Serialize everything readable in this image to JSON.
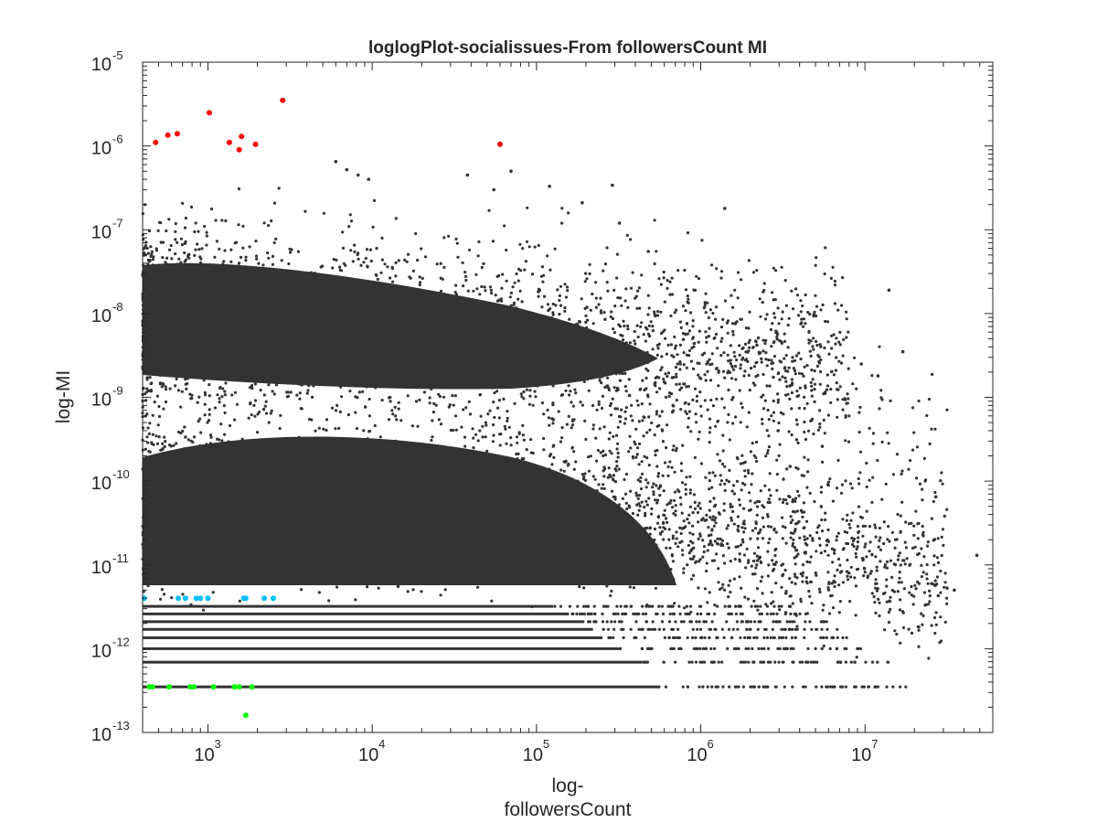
{
  "chart_data": {
    "type": "scatter",
    "title": "loglogPlot-socialissues-From followersCount MI",
    "xlabel_lines": [
      "log-",
      "followersCount"
    ],
    "ylabel": "log-MI",
    "x_scale": "log",
    "y_scale": "log",
    "xlim": [
      400,
      60000000
    ],
    "ylim": [
      1e-13,
      1e-05
    ],
    "x_ticks": [
      {
        "value": 1000,
        "base": "10",
        "exp": "3"
      },
      {
        "value": 10000,
        "base": "10",
        "exp": "4"
      },
      {
        "value": 100000,
        "base": "10",
        "exp": "5"
      },
      {
        "value": 1000000,
        "base": "10",
        "exp": "6"
      },
      {
        "value": 10000000,
        "base": "10",
        "exp": "7"
      }
    ],
    "y_ticks": [
      {
        "value": 1e-13,
        "base": "10",
        "exp": "-13"
      },
      {
        "value": 1e-12,
        "base": "10",
        "exp": "-12"
      },
      {
        "value": 1e-11,
        "base": "10",
        "exp": "-11"
      },
      {
        "value": 1e-10,
        "base": "10",
        "exp": "-10"
      },
      {
        "value": 1e-09,
        "base": "10",
        "exp": "-9"
      },
      {
        "value": 1e-08,
        "base": "10",
        "exp": "-8"
      },
      {
        "value": 1e-07,
        "base": "10",
        "exp": "-7"
      },
      {
        "value": 1e-06,
        "base": "10",
        "exp": "-6"
      },
      {
        "value": 1e-05,
        "base": "10",
        "exp": "-5"
      }
    ],
    "grid": false,
    "legend": "none",
    "bulk_description": "tens of thousands of dark gray points; dense cluster around 1e-9 to 1e-7 for x<1e5, dense cloud 1e-11 to 1e-9.5 for x<1e6, discrete horizontal bands between 3.5e-13 and 3e-12",
    "series": [
      {
        "color": "#333333",
        "points": [
          [
            6000,
            6.5e-07
          ],
          [
            7000,
            5.2e-07
          ],
          [
            8200,
            4.5e-07
          ],
          [
            9500,
            4e-07
          ],
          [
            38000,
            4.5e-07
          ],
          [
            55000,
            3e-07
          ],
          [
            70000,
            5e-07
          ],
          [
            120000,
            3.3e-07
          ],
          [
            190000,
            2.1e-07
          ],
          [
            290000,
            3.4e-07
          ],
          [
            320000,
            1.2e-07
          ],
          [
            480000,
            5.5e-08
          ],
          [
            1400000,
            1.8e-07
          ],
          [
            14000000,
            1.9e-08
          ],
          [
            9500000,
            2.5e-09
          ],
          [
            17000000,
            3.5e-09
          ],
          [
            2200000,
            4.2e-09
          ],
          [
            12000000,
            1.8e-09
          ],
          [
            5500000,
            2.6e-10
          ],
          [
            3500000,
            1.5e-10
          ],
          [
            27000000,
            6.5e-11
          ],
          [
            35000000,
            5e-12
          ],
          [
            48000000,
            1.3e-11
          ]
        ]
      },
      {
        "color": "#ff0000",
        "points": [
          [
            480,
            1.1e-06
          ],
          [
            570,
            1.35e-06
          ],
          [
            650,
            1.4e-06
          ],
          [
            1020,
            2.5e-06
          ],
          [
            1350,
            1.1e-06
          ],
          [
            1550,
            9e-07
          ],
          [
            1600,
            1.3e-06
          ],
          [
            1950,
            1.05e-06
          ],
          [
            2850,
            3.5e-06
          ],
          [
            60000,
            1.05e-06
          ]
        ]
      },
      {
        "color": "#00bfff",
        "points": [
          [
            410,
            4e-12
          ],
          [
            660,
            4e-12
          ],
          [
            730,
            4e-12
          ],
          [
            850,
            4e-12
          ],
          [
            900,
            4e-12
          ],
          [
            1000,
            4e-12
          ],
          [
            1650,
            4e-12
          ],
          [
            1700,
            4e-12
          ],
          [
            2200,
            4e-12
          ],
          [
            2500,
            4e-12
          ]
        ]
      },
      {
        "color": "#00ff00",
        "points": [
          [
            440,
            3.5e-13
          ],
          [
            460,
            3.5e-13
          ],
          [
            580,
            3.5e-13
          ],
          [
            780,
            3.5e-13
          ],
          [
            820,
            3.5e-13
          ],
          [
            1080,
            3.5e-13
          ],
          [
            1450,
            3.5e-13
          ],
          [
            1550,
            3.5e-13
          ],
          [
            1850,
            3.5e-13
          ],
          [
            1700,
            1.6e-13
          ]
        ]
      }
    ]
  }
}
